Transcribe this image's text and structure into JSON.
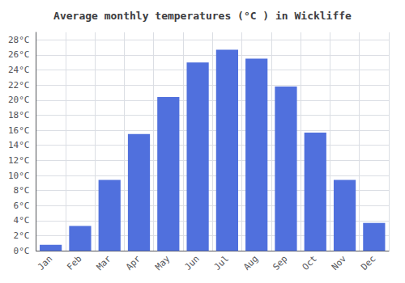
{
  "chart_data": {
    "type": "bar",
    "title": "Average monthly temperatures (°C ) in Wickliffe",
    "categories": [
      "Jan",
      "Feb",
      "Mar",
      "Apr",
      "May",
      "Jun",
      "Jul",
      "Aug",
      "Sep",
      "Oct",
      "Nov",
      "Dec"
    ],
    "values": [
      0.8,
      3.3,
      9.4,
      15.5,
      20.4,
      25.0,
      26.7,
      25.5,
      21.8,
      15.7,
      9.4,
      3.7
    ],
    "ylim": [
      0,
      29
    ],
    "yticks": [
      {
        "value": 0,
        "label": "0°C"
      },
      {
        "value": 2,
        "label": "2°C"
      },
      {
        "value": 4,
        "label": "4°C"
      },
      {
        "value": 6,
        "label": "6°C"
      },
      {
        "value": 8,
        "label": "8°C"
      },
      {
        "value": 10,
        "label": "10°C"
      },
      {
        "value": 12,
        "label": "12°C"
      },
      {
        "value": 14,
        "label": "14°C"
      },
      {
        "value": 16,
        "label": "16°C"
      },
      {
        "value": 18,
        "label": "18°C"
      },
      {
        "value": 20,
        "label": "20°C"
      },
      {
        "value": 22,
        "label": "22°C"
      },
      {
        "value": 24,
        "label": "24°C"
      },
      {
        "value": 26,
        "label": "26°C"
      },
      {
        "value": 28,
        "label": "28°C"
      }
    ],
    "grid": true
  }
}
